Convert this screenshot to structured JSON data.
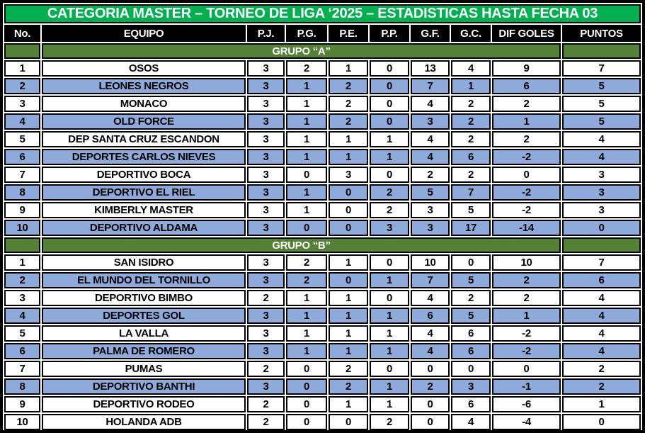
{
  "title": "CATEGORIA MASTER – TORNEO DE LIGA ‘2025 – ESTADISTICAS HASTA FECHA 03",
  "columns": [
    "No.",
    "EQUIPO",
    "P.J.",
    "P.G.",
    "P.E.",
    "P.P.",
    "G.F.",
    "G.C.",
    "DIF GOLES",
    "PUNTOS"
  ],
  "groups": [
    {
      "label": "GRUPO “A”",
      "rows": [
        {
          "highlight": false,
          "cells": [
            "1",
            "OSOS",
            "3",
            "2",
            "1",
            "0",
            "13",
            "4",
            "9",
            "7"
          ]
        },
        {
          "highlight": true,
          "cells": [
            "2",
            "LEONES NEGROS",
            "3",
            "1",
            "2",
            "0",
            "7",
            "1",
            "6",
            "5"
          ]
        },
        {
          "highlight": false,
          "cells": [
            "3",
            "MONACO",
            "3",
            "1",
            "2",
            "0",
            "4",
            "2",
            "2",
            "5"
          ]
        },
        {
          "highlight": true,
          "cells": [
            "4",
            "OLD FORCE",
            "3",
            "1",
            "2",
            "0",
            "3",
            "2",
            "1",
            "5"
          ]
        },
        {
          "highlight": false,
          "cells": [
            "5",
            "DEP SANTA CRUZ ESCANDON",
            "3",
            "1",
            "1",
            "1",
            "4",
            "2",
            "2",
            "4"
          ]
        },
        {
          "highlight": true,
          "cells": [
            "6",
            "DEPORTES CARLOS NIEVES",
            "3",
            "1",
            "1",
            "1",
            "4",
            "6",
            "-2",
            "4"
          ]
        },
        {
          "highlight": false,
          "cells": [
            "7",
            "DEPORTIVO BOCA",
            "3",
            "0",
            "3",
            "0",
            "2",
            "2",
            "0",
            "3"
          ]
        },
        {
          "highlight": true,
          "cells": [
            "8",
            "DEPORTIVO EL RIEL",
            "3",
            "1",
            "0",
            "2",
            "5",
            "7",
            "-2",
            "3"
          ]
        },
        {
          "highlight": false,
          "cells": [
            "9",
            "KIMBERLY MASTER",
            "3",
            "1",
            "0",
            "2",
            "3",
            "5",
            "-2",
            "3"
          ]
        },
        {
          "highlight": true,
          "cells": [
            "10",
            "DEPORTIVO ALDAMA",
            "3",
            "0",
            "0",
            "3",
            "3",
            "17",
            "-14",
            "0"
          ]
        }
      ]
    },
    {
      "label": "GRUPO “B”",
      "rows": [
        {
          "highlight": false,
          "cells": [
            "1",
            "SAN ISIDRO",
            "3",
            "2",
            "1",
            "0",
            "10",
            "0",
            "10",
            "7"
          ]
        },
        {
          "highlight": true,
          "cells": [
            "2",
            "EL MUNDO DEL TORNILLO",
            "3",
            "2",
            "0",
            "1",
            "7",
            "5",
            "2",
            "6"
          ]
        },
        {
          "highlight": false,
          "cells": [
            "3",
            "DEPORTIVO BIMBO",
            "2",
            "1",
            "1",
            "0",
            "4",
            "2",
            "2",
            "4"
          ]
        },
        {
          "highlight": true,
          "cells": [
            "4",
            "DEPORTES GOL",
            "3",
            "1",
            "1",
            "1",
            "6",
            "5",
            "1",
            "4"
          ]
        },
        {
          "highlight": false,
          "cells": [
            "5",
            "LA VALLA",
            "3",
            "1",
            "1",
            "1",
            "4",
            "6",
            "-2",
            "4"
          ]
        },
        {
          "highlight": true,
          "cells": [
            "6",
            "PALMA DE ROMERO",
            "3",
            "1",
            "1",
            "1",
            "4",
            "6",
            "-2",
            "4"
          ]
        },
        {
          "highlight": false,
          "cells": [
            "7",
            "PUMAS",
            "2",
            "0",
            "2",
            "0",
            "0",
            "0",
            "0",
            "2"
          ]
        },
        {
          "highlight": true,
          "cells": [
            "8",
            "DEPORTIVO BANTHI",
            "3",
            "0",
            "2",
            "1",
            "2",
            "3",
            "-1",
            "2"
          ]
        },
        {
          "highlight": false,
          "cells": [
            "9",
            "DEPORTIVO RODEO",
            "2",
            "0",
            "1",
            "1",
            "0",
            "6",
            "-6",
            "1"
          ]
        },
        {
          "highlight": false,
          "cells": [
            "10",
            "HOLANDA ADB",
            "2",
            "0",
            "0",
            "2",
            "0",
            "4",
            "-4",
            "0"
          ]
        }
      ]
    }
  ],
  "colors": {
    "title_bg": "#00B050",
    "group_bg": "#548235",
    "highlight_row_bg": "#8EAADB",
    "header_bg": "#000000",
    "header_text": "#FFFFFF",
    "row_text": "#000000",
    "border": "#000000"
  }
}
